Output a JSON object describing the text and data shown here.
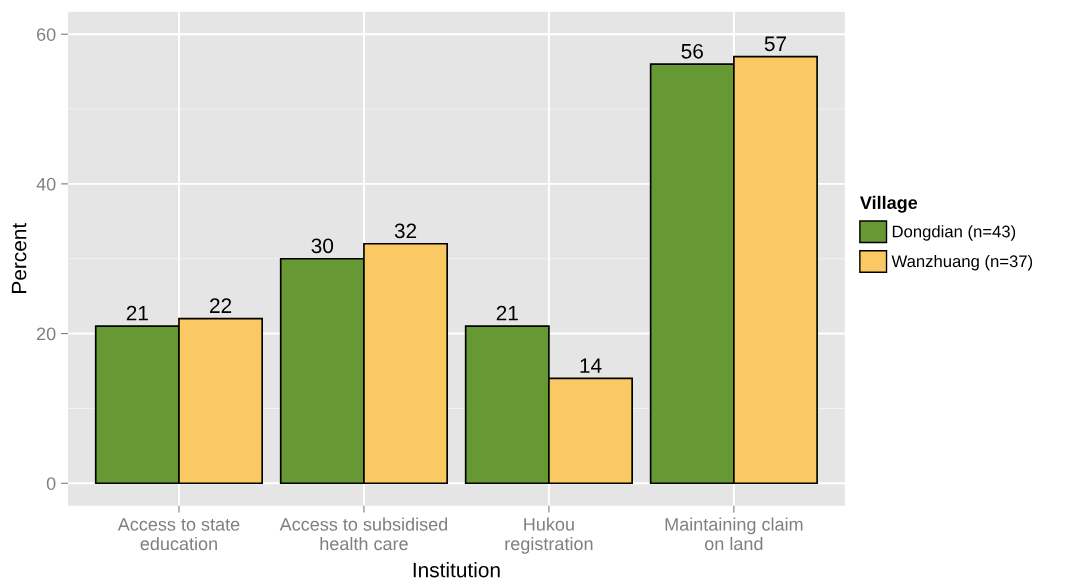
{
  "chart_data": {
    "type": "bar",
    "xlabel": "Institution",
    "ylabel": "Percent",
    "legend_title": "Village",
    "categories": [
      "Access to state\neducation",
      "Access to subsidised\nhealth care",
      "Hukou\nregistration",
      "Maintaining claim\non land"
    ],
    "series": [
      {
        "name": "Dongdian (n=43)",
        "color": "#669933",
        "values": [
          21,
          30,
          21,
          56
        ]
      },
      {
        "name": "Wanzhuang (n=37)",
        "color": "#fbc963",
        "values": [
          22,
          32,
          14,
          57
        ]
      }
    ],
    "ylim": [
      -3,
      63
    ],
    "yticks": [
      0,
      20,
      40,
      60
    ],
    "grid": true,
    "legend": "right",
    "data_labels": true
  }
}
